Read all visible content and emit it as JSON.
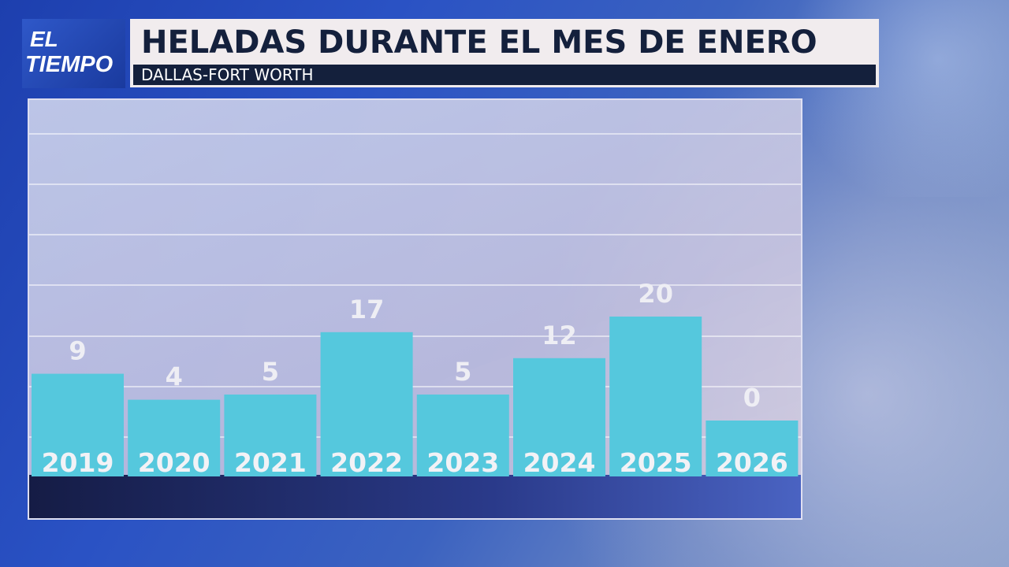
{
  "logo": {
    "line1": "EL",
    "line2": "TIEMPO"
  },
  "header": {
    "title": "HELADAS DURANTE EL MES DE ENERO",
    "subtitle": "DALLAS-FORT WORTH"
  },
  "colors": {
    "bar": "#55c8dd",
    "title_bg": "#f1ecee",
    "title_text": "#14203c"
  },
  "chart_data": {
    "type": "bar",
    "title": "HELADAS DURANTE EL MES DE ENERO",
    "subtitle": "DALLAS-FORT WORTH",
    "categories": [
      "2019",
      "2020",
      "2021",
      "2022",
      "2023",
      "2024",
      "2025",
      "2026"
    ],
    "values": [
      9,
      4,
      5,
      17,
      5,
      12,
      20,
      0
    ],
    "xlabel": "",
    "ylabel": "",
    "grid": true
  }
}
